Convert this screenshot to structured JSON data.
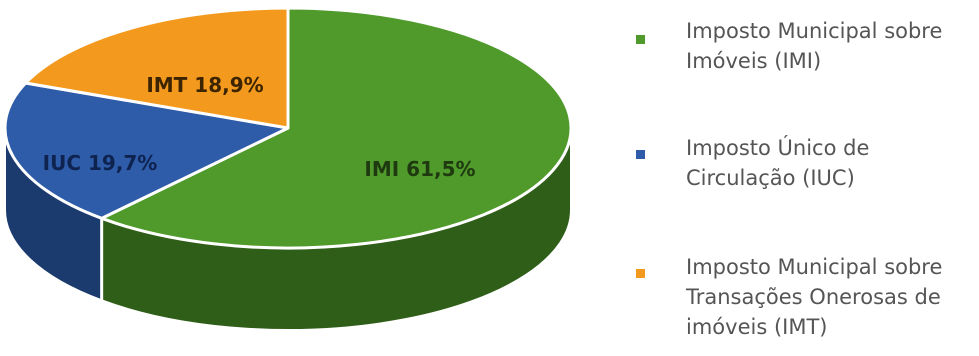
{
  "chart_data": {
    "type": "pie",
    "categories": [
      "IMI",
      "IUC",
      "IMT"
    ],
    "values": [
      61.5,
      19.7,
      18.9
    ],
    "labels": [
      "IMI 61,5%",
      "IUC 19,7%",
      "IMT 18,9%"
    ],
    "legend": [
      "Imposto Municipal sobre Imóveis (IMI)",
      "Imposto Único de Circulação (IUC)",
      "Imposto Municipal sobre Transações Onerosas de imóveis (IMT)"
    ],
    "colors": [
      "#4f9a2b",
      "#2e5ca8",
      "#f39a1e"
    ],
    "side_colors": [
      "#2f5e18",
      "#1b3a6e",
      "#b06a0a"
    ],
    "title": "",
    "legend_position": "right",
    "style": "3d"
  }
}
